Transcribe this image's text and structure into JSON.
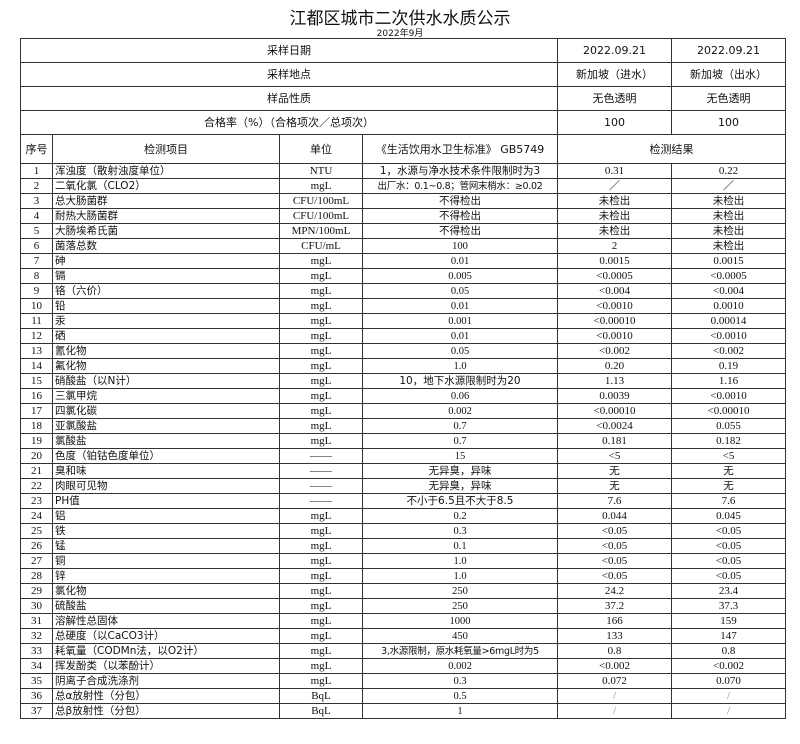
{
  "title": "江都区城市二次供水水质公示",
  "subtitle": "2022年9月",
  "meta_rows": [
    {
      "label": "采样日期",
      "v1": "2022.09.21",
      "v2": "2022.09.21"
    },
    {
      "label": "采样地点",
      "v1": "新加坡（进水）",
      "v2": "新加坡（出水）"
    },
    {
      "label": "样品性质",
      "v1": "无色透明",
      "v2": "无色透明"
    },
    {
      "label": "合格率（%）（合格项次／总项次）",
      "v1": "100",
      "v2": "100"
    }
  ],
  "columns": {
    "no": "序号",
    "item": "检测项目",
    "unit": "单位",
    "standard": "《生活饮用水卫生标准》 GB5749",
    "result": "检测结果"
  },
  "rows": [
    [
      "1",
      "浑浊度（散射浊度单位）",
      "NTU",
      "1，水源与净水技术条件限制时为3",
      "0.31",
      "0.22"
    ],
    [
      "2",
      "二氧化氯（CLO2）",
      "mgL",
      "出厂水：0.1~0.8；管网末梢水：≥0.02",
      "／",
      "／"
    ],
    [
      "3",
      "总大肠菌群",
      "CFU/100mL",
      "不得检出",
      "未检出",
      "未检出"
    ],
    [
      "4",
      "耐热大肠菌群",
      "CFU/100mL",
      "不得检出",
      "未检出",
      "未检出"
    ],
    [
      "5",
      "大肠埃希氏菌",
      "MPN/100mL",
      "不得检出",
      "未检出",
      "未检出"
    ],
    [
      "6",
      "菌落总数",
      "CFU/mL",
      "100",
      "2",
      "未检出"
    ],
    [
      "7",
      "砷",
      "mgL",
      "0.01",
      "0.0015",
      "0.0015"
    ],
    [
      "8",
      "镉",
      "mgL",
      "0.005",
      "<0.0005",
      "<0.0005"
    ],
    [
      "9",
      "铬（六价）",
      "mgL",
      "0.05",
      "<0.004",
      "<0.004"
    ],
    [
      "10",
      "铅",
      "mgL",
      "0.01",
      "<0.0010",
      "0.0010"
    ],
    [
      "11",
      "汞",
      "mgL",
      "0.001",
      "<0.00010",
      "0.00014"
    ],
    [
      "12",
      "硒",
      "mgL",
      "0.01",
      "<0.0010",
      "<0.0010"
    ],
    [
      "13",
      "氰化物",
      "mgL",
      "0.05",
      "<0.002",
      "<0.002"
    ],
    [
      "14",
      "氟化物",
      "mgL",
      "1.0",
      "0.20",
      "0.19"
    ],
    [
      "15",
      "硝酸盐（以N计）",
      "mgL",
      "10，地下水源限制时为20",
      "1.13",
      "1.16"
    ],
    [
      "16",
      "三氯甲烷",
      "mgL",
      "0.06",
      "0.0039",
      "<0.0010"
    ],
    [
      "17",
      "四氯化碳",
      "mgL",
      "0.002",
      "<0.00010",
      "<0.00010"
    ],
    [
      "18",
      "亚氯酸盐",
      "mgL",
      "0.7",
      "<0.0024",
      "0.055"
    ],
    [
      "19",
      "氯酸盐",
      "mgL",
      "0.7",
      "0.181",
      "0.182"
    ],
    [
      "20",
      "色度（铂钴色度单位）",
      "——",
      "15",
      "<5",
      "<5"
    ],
    [
      "21",
      "臭和味",
      "——",
      "无异臭，异味",
      "无",
      "无"
    ],
    [
      "22",
      "肉眼可见物",
      "——",
      "无异臭，异味",
      "无",
      "无"
    ],
    [
      "23",
      "PH值",
      "——",
      "不小于6.5且不大于8.5",
      "7.6",
      "7.6"
    ],
    [
      "24",
      "铝",
      "mgL",
      "0.2",
      "0.044",
      "0.045"
    ],
    [
      "25",
      "铁",
      "mgL",
      "0.3",
      "<0.05",
      "<0.05"
    ],
    [
      "26",
      "锰",
      "mgL",
      "0.1",
      "<0.05",
      "<0.05"
    ],
    [
      "27",
      "铜",
      "mgL",
      "1.0",
      "<0.05",
      "<0.05"
    ],
    [
      "28",
      "锌",
      "mgL",
      "1.0",
      "<0.05",
      "<0.05"
    ],
    [
      "29",
      "氯化物",
      "mgL",
      "250",
      "24.2",
      "23.4"
    ],
    [
      "30",
      "硫酸盐",
      "mgL",
      "250",
      "37.2",
      "37.3"
    ],
    [
      "31",
      "溶解性总固体",
      "mgL",
      "1000",
      "166",
      "159"
    ],
    [
      "32",
      "总硬度（以CaCO3计）",
      "mgL",
      "450",
      "133",
      "147"
    ],
    [
      "33",
      "耗氧量（CODMn法，以O2计）",
      "mgL",
      "3,水源限制，原水耗氧量>6mgL时为5",
      "0.8",
      "0.8"
    ],
    [
      "34",
      "挥发酚类（以苯酚计）",
      "mgL",
      "0.002",
      "<0.002",
      "<0.002"
    ],
    [
      "35",
      "阴离子合成洗涤剂",
      "mgL",
      "0.3",
      "0.072",
      "0.070"
    ],
    [
      "36",
      "总α放射性（分包）",
      "BqL",
      "0.5",
      "/",
      "/"
    ],
    [
      "37",
      "总β放射性（分包）",
      "BqL",
      "1",
      "/",
      "/"
    ]
  ]
}
